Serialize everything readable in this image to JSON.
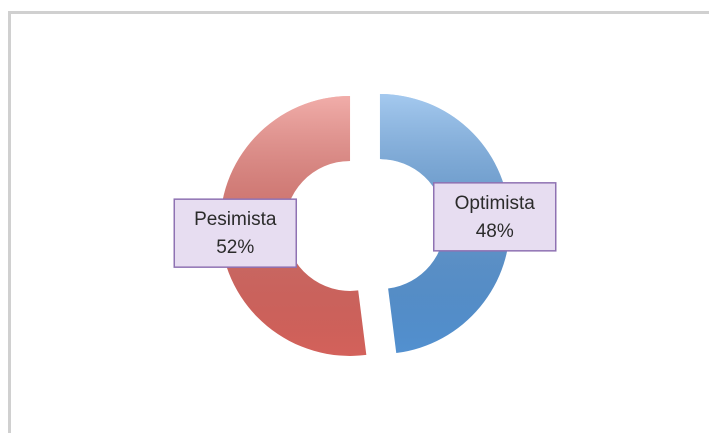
{
  "chart_data": {
    "type": "pie",
    "donut": true,
    "categories": [
      "Pesimista",
      "Optimista"
    ],
    "series": [
      {
        "values": [
          52,
          48
        ],
        "value_labels": [
          "52%",
          "48%"
        ],
        "colors": [
          "#e66a63",
          "#5a9de2"
        ]
      }
    ]
  }
}
